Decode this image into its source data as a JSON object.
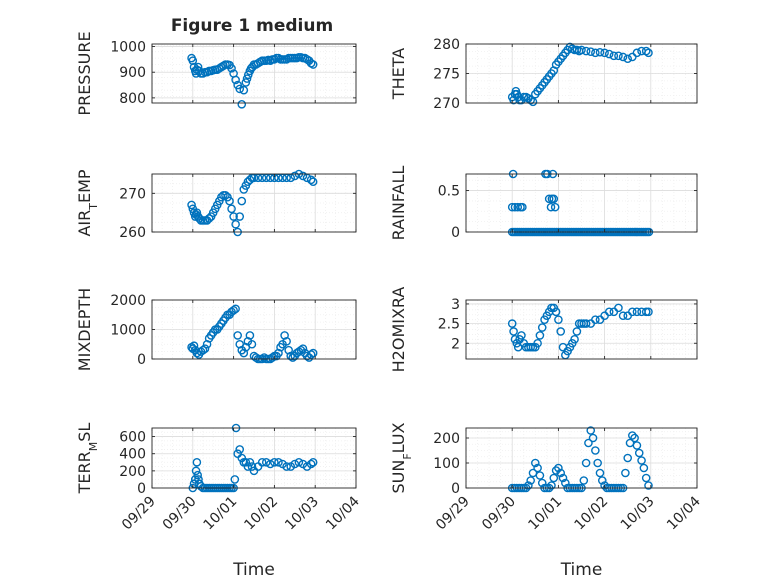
{
  "figure": {
    "title": "Figure 1 medium"
  },
  "chart_data": [
    {
      "type": "scatter",
      "ylabel": "PRESSURE",
      "xlim": [
        0,
        5
      ],
      "ylim": [
        780,
        1010
      ],
      "yticks": [
        800,
        900,
        1000
      ],
      "marker_color": "#0072BD",
      "x": [
        0.97,
        1.0,
        1.03,
        1.06,
        1.08,
        1.1,
        1.13,
        1.16,
        1.2,
        1.25,
        1.3,
        1.35,
        1.4,
        1.45,
        1.5,
        1.55,
        1.6,
        1.65,
        1.7,
        1.75,
        1.8,
        1.85,
        1.9,
        1.95,
        2.0,
        2.05,
        2.1,
        2.15,
        2.2,
        2.25,
        2.3,
        2.33,
        2.36,
        2.4,
        2.43,
        2.46,
        2.5,
        2.55,
        2.6,
        2.65,
        2.7,
        2.75,
        2.8,
        2.85,
        2.9,
        2.95,
        3.0,
        3.05,
        3.1,
        3.15,
        3.2,
        3.25,
        3.3,
        3.35,
        3.4,
        3.45,
        3.5,
        3.55,
        3.6,
        3.65,
        3.7,
        3.75,
        3.8,
        3.85,
        3.9,
        3.95
      ],
      "y": [
        955,
        945,
        920,
        905,
        895,
        910,
        920,
        905,
        895,
        895,
        900,
        900,
        905,
        905,
        908,
        910,
        910,
        915,
        920,
        925,
        930,
        930,
        928,
        915,
        895,
        870,
        850,
        835,
        775,
        830,
        860,
        875,
        890,
        905,
        915,
        920,
        930,
        930,
        935,
        940,
        945,
        945,
        945,
        948,
        945,
        950,
        950,
        955,
        955,
        950,
        950,
        950,
        950,
        955,
        955,
        955,
        955,
        955,
        958,
        958,
        955,
        955,
        950,
        945,
        935,
        930
      ]
    },
    {
      "type": "scatter",
      "ylabel": "THETA",
      "xlim": [
        0,
        5
      ],
      "ylim": [
        270,
        280
      ],
      "yticks": [
        270,
        275,
        280
      ],
      "marker_color": "#0072BD",
      "x": [
        1.0,
        1.03,
        1.06,
        1.08,
        1.1,
        1.13,
        1.16,
        1.2,
        1.25,
        1.3,
        1.35,
        1.4,
        1.45,
        1.5,
        1.55,
        1.6,
        1.65,
        1.7,
        1.75,
        1.8,
        1.85,
        1.9,
        1.95,
        2.0,
        2.05,
        2.1,
        2.15,
        2.2,
        2.25,
        2.3,
        2.35,
        2.4,
        2.45,
        2.5,
        2.6,
        2.7,
        2.8,
        2.9,
        3.0,
        3.1,
        3.2,
        3.3,
        3.4,
        3.5,
        3.6,
        3.7,
        3.8,
        3.9,
        3.95
      ],
      "y": [
        271,
        270.5,
        271.5,
        272,
        271.5,
        271,
        270.5,
        270.5,
        271,
        271,
        270.8,
        270.5,
        270.2,
        271.5,
        272,
        272.5,
        273,
        273.5,
        274,
        274.5,
        275,
        275.5,
        276.5,
        277,
        277.5,
        278,
        278.5,
        279,
        279.5,
        279.2,
        279,
        279,
        278.8,
        279,
        278.8,
        278.7,
        278.5,
        278.6,
        278.5,
        278.3,
        278,
        278,
        277.8,
        277.5,
        277.8,
        278.5,
        278.8,
        278.8,
        278.5
      ]
    },
    {
      "type": "scatter",
      "ylabel": "AIR",
      "ylabel_sub": "T",
      "ylabel_suffix": "EMP",
      "xlim": [
        0,
        5
      ],
      "ylim": [
        260,
        275
      ],
      "yticks": [
        260,
        270
      ],
      "marker_color": "#0072BD",
      "x": [
        0.97,
        1.0,
        1.03,
        1.06,
        1.08,
        1.1,
        1.13,
        1.16,
        1.2,
        1.25,
        1.3,
        1.35,
        1.4,
        1.45,
        1.5,
        1.55,
        1.6,
        1.65,
        1.7,
        1.75,
        1.8,
        1.85,
        1.9,
        1.95,
        2.0,
        2.05,
        2.1,
        2.15,
        2.2,
        2.25,
        2.3,
        2.35,
        2.4,
        2.45,
        2.5,
        2.6,
        2.7,
        2.8,
        2.9,
        3.0,
        3.1,
        3.2,
        3.3,
        3.4,
        3.5,
        3.6,
        3.7,
        3.8,
        3.9,
        3.95
      ],
      "y": [
        267,
        266,
        265,
        264,
        264.5,
        265,
        264,
        263.5,
        263,
        263,
        263,
        263,
        263.5,
        264,
        265,
        266,
        267,
        268,
        269,
        269.5,
        269.5,
        269,
        268,
        266,
        264,
        262,
        260,
        264,
        268,
        271,
        272,
        273,
        273.5,
        274,
        274,
        274,
        274,
        274,
        274,
        274,
        274,
        274,
        274,
        274,
        274.5,
        275,
        274.5,
        274,
        273.5,
        273
      ]
    },
    {
      "type": "scatter",
      "ylabel": "RAINFALL",
      "xlim": [
        0,
        5
      ],
      "ylim": [
        0,
        0.7
      ],
      "yticks": [
        0,
        0.5
      ],
      "marker_color": "#0072BD",
      "x": [
        1.0,
        1.04,
        1.08,
        1.12,
        1.16,
        1.2,
        1.24,
        1.28,
        1.32,
        1.36,
        1.4,
        1.44,
        1.48,
        1.52,
        1.56,
        1.6,
        1.64,
        1.68,
        1.72,
        1.76,
        1.8,
        1.84,
        1.88,
        1.92,
        1.96,
        2.0,
        2.04,
        2.08,
        2.12,
        2.16,
        2.2,
        2.24,
        2.28,
        2.32,
        2.36,
        2.4,
        2.44,
        2.48,
        2.52,
        2.56,
        2.6,
        2.64,
        2.68,
        2.72,
        2.76,
        2.8,
        2.84,
        2.88,
        2.92,
        2.96,
        3.0,
        3.04,
        3.08,
        3.12,
        3.16,
        3.2,
        3.24,
        3.28,
        3.32,
        3.36,
        3.4,
        3.44,
        3.48,
        3.52,
        3.56,
        3.6,
        3.64,
        3.68,
        3.72,
        3.76,
        3.8,
        3.84,
        3.88,
        3.92,
        3.96,
        1.0,
        1.02,
        1.06,
        1.12,
        1.18,
        1.22,
        1.72,
        1.76,
        1.8,
        1.84,
        1.86,
        1.88,
        1.9,
        1.93
      ],
      "y": [
        0,
        0,
        0,
        0,
        0,
        0,
        0,
        0,
        0,
        0,
        0,
        0,
        0,
        0,
        0,
        0,
        0,
        0,
        0,
        0,
        0,
        0,
        0,
        0,
        0,
        0,
        0,
        0,
        0,
        0,
        0,
        0,
        0,
        0,
        0,
        0,
        0,
        0,
        0,
        0,
        0,
        0,
        0,
        0,
        0,
        0,
        0,
        0,
        0,
        0,
        0,
        0,
        0,
        0,
        0,
        0,
        0,
        0,
        0,
        0,
        0,
        0,
        0,
        0,
        0,
        0,
        0,
        0,
        0,
        0,
        0,
        0,
        0,
        0,
        0,
        0.3,
        0.7,
        0.3,
        0.3,
        0.3,
        0.3,
        0.7,
        0.7,
        0.4,
        0.3,
        0.4,
        0.7,
        0.4,
        0.3
      ]
    },
    {
      "type": "scatter",
      "ylabel": "MIXDEPTH",
      "xlim": [
        0,
        5
      ],
      "ylim": [
        0,
        2000
      ],
      "yticks": [
        0,
        1000,
        2000
      ],
      "marker_color": "#0072BD",
      "x": [
        0.97,
        1.0,
        1.03,
        1.06,
        1.1,
        1.15,
        1.2,
        1.25,
        1.3,
        1.35,
        1.4,
        1.45,
        1.5,
        1.55,
        1.6,
        1.65,
        1.7,
        1.75,
        1.8,
        1.85,
        1.9,
        1.95,
        2.0,
        2.05,
        2.1,
        2.15,
        2.2,
        2.25,
        2.3,
        2.35,
        2.4,
        2.45,
        2.5,
        2.55,
        2.6,
        2.65,
        2.7,
        2.75,
        2.8,
        2.85,
        2.9,
        2.95,
        3.0,
        3.05,
        3.1,
        3.15,
        3.2,
        3.25,
        3.3,
        3.35,
        3.4,
        3.45,
        3.5,
        3.55,
        3.6,
        3.65,
        3.7,
        3.75,
        3.8,
        3.85,
        3.9,
        3.95
      ],
      "y": [
        400,
        350,
        450,
        300,
        200,
        150,
        250,
        300,
        350,
        500,
        700,
        800,
        900,
        1000,
        1000,
        1100,
        1200,
        1300,
        1400,
        1500,
        1500,
        1600,
        1650,
        1700,
        800,
        500,
        300,
        200,
        400,
        600,
        800,
        500,
        100,
        50,
        0,
        0,
        0,
        50,
        0,
        0,
        0,
        50,
        100,
        100,
        200,
        400,
        500,
        800,
        600,
        300,
        100,
        50,
        100,
        200,
        250,
        300,
        350,
        200,
        100,
        50,
        150,
        200
      ]
    },
    {
      "type": "scatter",
      "ylabel": "H2OMIXRA",
      "xlim": [
        0,
        5
      ],
      "ylim": [
        1.6,
        3.1
      ],
      "yticks": [
        2,
        2.5,
        3
      ],
      "marker_color": "#0072BD",
      "x": [
        1.0,
        1.03,
        1.06,
        1.1,
        1.13,
        1.16,
        1.2,
        1.25,
        1.3,
        1.35,
        1.4,
        1.45,
        1.5,
        1.55,
        1.6,
        1.65,
        1.7,
        1.75,
        1.8,
        1.85,
        1.9,
        1.95,
        2.0,
        2.05,
        2.1,
        2.15,
        2.2,
        2.25,
        2.3,
        2.35,
        2.4,
        2.45,
        2.5,
        2.55,
        2.6,
        2.7,
        2.8,
        2.9,
        3.0,
        3.1,
        3.2,
        3.3,
        3.4,
        3.5,
        3.6,
        3.7,
        3.8,
        3.9,
        3.95
      ],
      "y": [
        2.5,
        2.3,
        2.1,
        2.0,
        1.9,
        2.1,
        2.2,
        2.0,
        1.9,
        1.9,
        1.9,
        1.9,
        1.9,
        2.0,
        2.2,
        2.4,
        2.6,
        2.7,
        2.8,
        2.9,
        2.9,
        2.8,
        2.6,
        2.3,
        1.9,
        1.7,
        1.8,
        1.9,
        2.0,
        2.1,
        2.3,
        2.5,
        2.5,
        2.5,
        2.5,
        2.5,
        2.6,
        2.6,
        2.7,
        2.8,
        2.8,
        2.9,
        2.7,
        2.7,
        2.8,
        2.8,
        2.8,
        2.8,
        2.8
      ]
    },
    {
      "type": "scatter",
      "ylabel": "TERR",
      "ylabel_sub": "M",
      "ylabel_suffix": "SL",
      "xlim": [
        0,
        5
      ],
      "ylim": [
        0,
        700
      ],
      "yticks": [
        0,
        200,
        400,
        600
      ],
      "marker_color": "#0072BD",
      "x": [
        1.0,
        1.03,
        1.06,
        1.08,
        1.1,
        1.12,
        1.14,
        1.16,
        1.2,
        1.25,
        1.3,
        1.35,
        1.4,
        1.45,
        1.5,
        1.55,
        1.6,
        1.65,
        1.7,
        1.75,
        1.8,
        1.85,
        1.9,
        1.95,
        2.0,
        2.03,
        2.06,
        2.1,
        2.15,
        2.2,
        2.25,
        2.3,
        2.35,
        2.4,
        2.45,
        2.5,
        2.6,
        2.7,
        2.8,
        2.9,
        3.0,
        3.1,
        3.2,
        3.3,
        3.4,
        3.5,
        3.6,
        3.7,
        3.8,
        3.9,
        3.95
      ],
      "y": [
        0,
        50,
        100,
        200,
        300,
        150,
        100,
        50,
        20,
        0,
        0,
        0,
        0,
        0,
        0,
        0,
        0,
        0,
        0,
        0,
        0,
        0,
        0,
        0,
        0,
        100,
        700,
        400,
        450,
        350,
        300,
        300,
        250,
        300,
        250,
        200,
        250,
        300,
        300,
        280,
        300,
        300,
        280,
        250,
        250,
        280,
        300,
        280,
        250,
        280,
        300
      ]
    },
    {
      "type": "scatter",
      "ylabel": "SUN",
      "ylabel_sub": "F",
      "ylabel_suffix": "LUX",
      "xlim": [
        0,
        5
      ],
      "ylim": [
        0,
        240
      ],
      "yticks": [
        0,
        100,
        200
      ],
      "marker_color": "#0072BD",
      "x": [
        1.0,
        1.05,
        1.1,
        1.15,
        1.2,
        1.25,
        1.3,
        1.35,
        1.4,
        1.45,
        1.5,
        1.55,
        1.6,
        1.65,
        1.7,
        1.75,
        1.8,
        1.85,
        1.9,
        1.95,
        2.0,
        2.05,
        2.1,
        2.15,
        2.2,
        2.25,
        2.3,
        2.35,
        2.4,
        2.45,
        2.5,
        2.55,
        2.6,
        2.65,
        2.7,
        2.75,
        2.8,
        2.85,
        2.9,
        2.95,
        3.0,
        3.05,
        3.1,
        3.15,
        3.2,
        3.25,
        3.3,
        3.35,
        3.4,
        3.45,
        3.5,
        3.55,
        3.6,
        3.65,
        3.7,
        3.75,
        3.8,
        3.85,
        3.9,
        3.95
      ],
      "y": [
        0,
        0,
        0,
        0,
        0,
        0,
        0,
        10,
        30,
        60,
        100,
        80,
        50,
        20,
        0,
        0,
        0,
        10,
        40,
        70,
        80,
        60,
        40,
        20,
        0,
        0,
        0,
        0,
        0,
        0,
        0,
        30,
        100,
        180,
        230,
        200,
        150,
        100,
        60,
        30,
        10,
        0,
        0,
        0,
        0,
        0,
        0,
        0,
        0,
        60,
        120,
        180,
        210,
        200,
        170,
        140,
        110,
        80,
        40,
        10
      ]
    }
  ],
  "x_axis": {
    "xlabel": "Time",
    "tick_labels": [
      "09/29",
      "09/30",
      "10/01",
      "10/02",
      "10/03",
      "10/04"
    ]
  }
}
